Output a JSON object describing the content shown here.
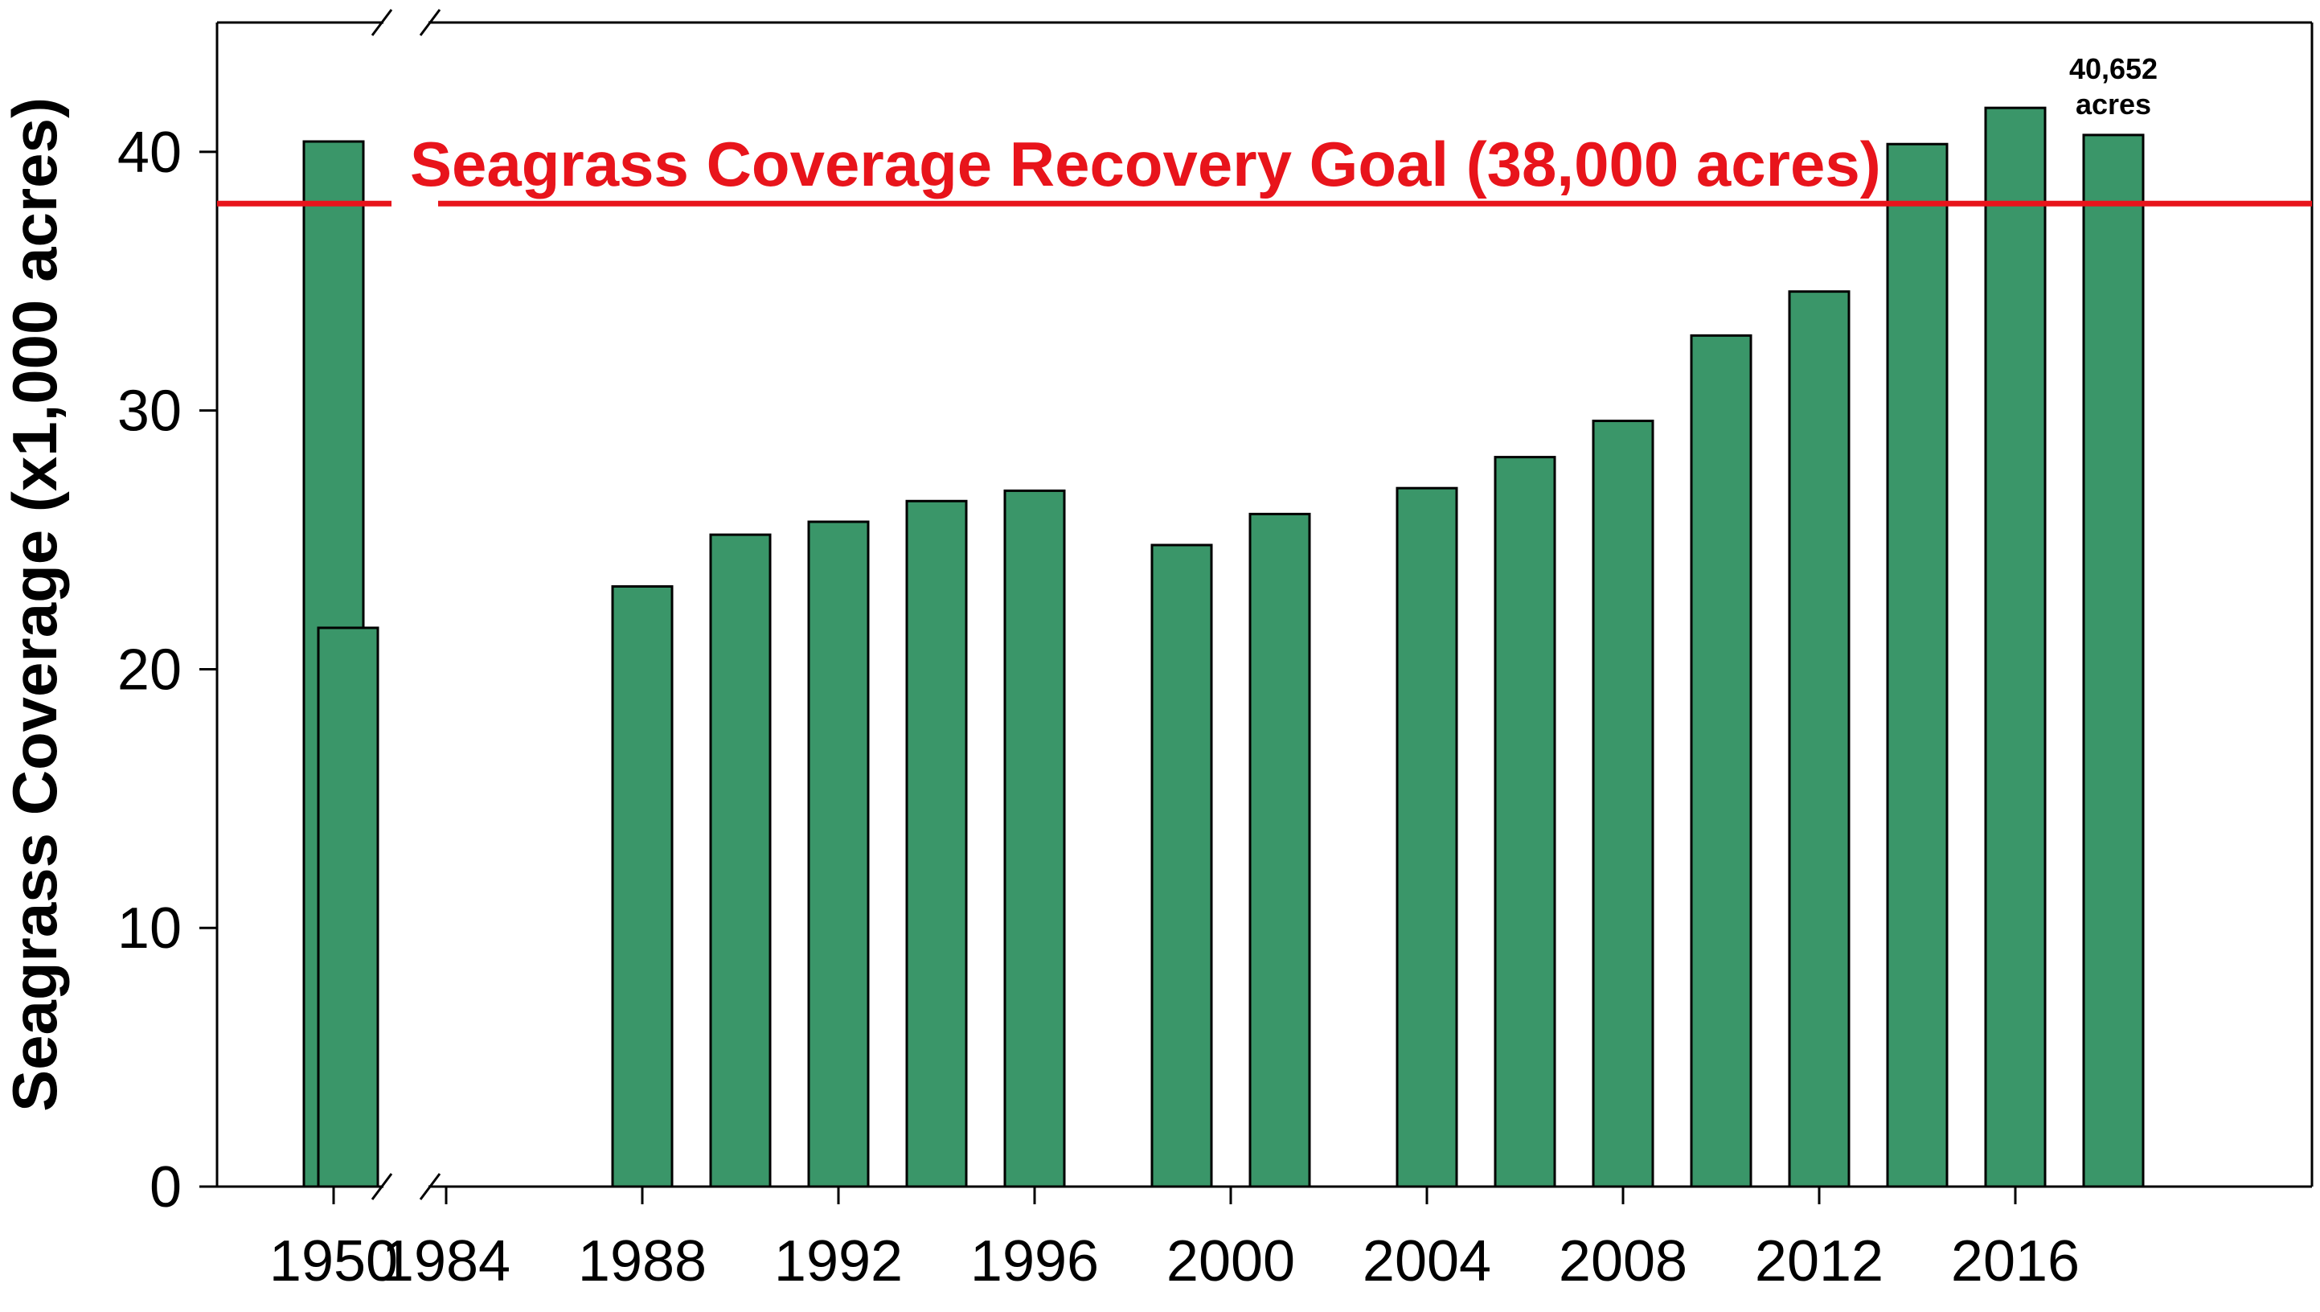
{
  "chart_data": {
    "type": "bar",
    "ylabel": "Seagrass Coverage (x1,000 acres)",
    "xlabel": "",
    "ylim": [
      0,
      45
    ],
    "yticks": [
      0,
      10,
      20,
      30,
      40
    ],
    "xlim": [
      1980.3,
      2019.0
    ],
    "xticks": [
      1984,
      1988,
      1992,
      1996,
      2000,
      2004,
      2008,
      2012,
      2016
    ],
    "axis_break": "between 1950 and 1982",
    "bar_color": "#3a9669",
    "goal_color": "#e8141b",
    "reference_line": {
      "value": 38,
      "label": "Seagrass Coverage Recovery Goal (38,000 acres)"
    },
    "categories": [
      "1950",
      "1982",
      "1988",
      "1990",
      "1992",
      "1994",
      "1996",
      "1999",
      "2001",
      "2004",
      "2006",
      "2008",
      "2010",
      "2012",
      "2014",
      "2016",
      "2018"
    ],
    "x": [
      1950,
      1982,
      1988,
      1990,
      1992,
      1994,
      1996,
      1999,
      2001,
      2004,
      2006,
      2008,
      2010,
      2012,
      2014,
      2016,
      2018
    ],
    "values": [
      40.4,
      21.6,
      23.2,
      25.2,
      25.7,
      26.5,
      26.9,
      24.8,
      26.0,
      27.0,
      28.2,
      29.6,
      32.9,
      34.6,
      40.3,
      41.7,
      40.652
    ],
    "annotations": [
      {
        "x": 2018,
        "text": [
          "40,652",
          "acres"
        ]
      }
    ]
  }
}
